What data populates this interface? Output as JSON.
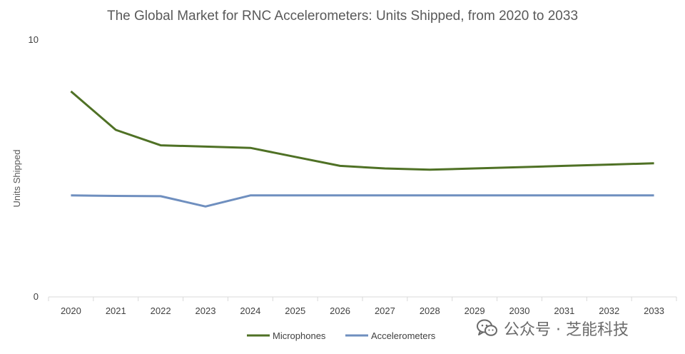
{
  "chart_data": {
    "type": "line",
    "title": "The Global Market for RNC Accelerometers: Units Shipped, from 2020 to 2033",
    "ylabel": "Units Shipped",
    "xlabel": "",
    "ylim": [
      0,
      10
    ],
    "yticks": [
      "0",
      "10"
    ],
    "categories": [
      "2020",
      "2021",
      "2022",
      "2023",
      "2024",
      "2025",
      "2026",
      "2027",
      "2028",
      "2029",
      "2030",
      "2031",
      "2032",
      "2033"
    ],
    "series": [
      {
        "name": "Microphones",
        "color": "#4f7125",
        "values": [
          8.0,
          6.5,
          5.9,
          5.85,
          5.8,
          5.45,
          5.1,
          5.0,
          4.95,
          5.0,
          5.05,
          5.1,
          5.15,
          5.2
        ]
      },
      {
        "name": "Accelerometers",
        "color": "#6f8fbf",
        "values": [
          3.95,
          3.93,
          3.92,
          3.52,
          3.95,
          3.95,
          3.95,
          3.95,
          3.95,
          3.95,
          3.95,
          3.95,
          3.95,
          3.95
        ]
      }
    ],
    "legend_position": "bottom",
    "grid": false
  },
  "watermark": {
    "text": "公众号 · 芝能科技",
    "icon": "wechat-icon"
  }
}
